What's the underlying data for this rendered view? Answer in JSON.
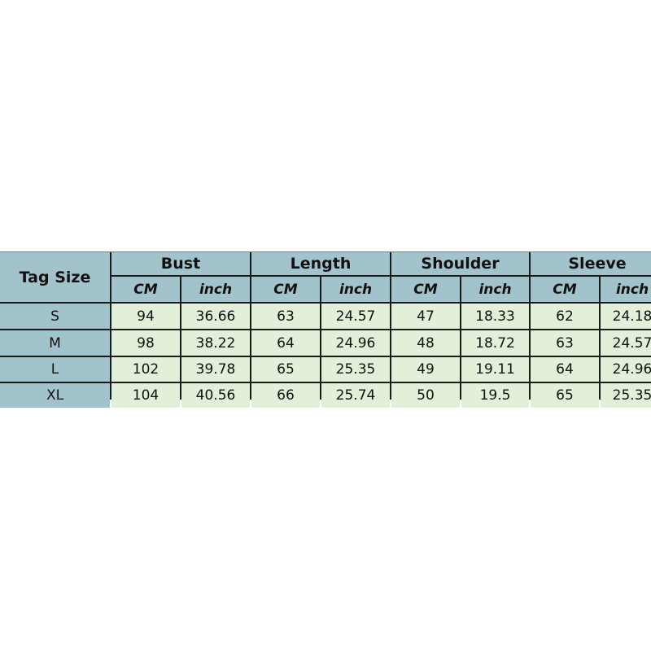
{
  "table": {
    "corner": "Tag Size",
    "groups": [
      "Bust",
      "Length",
      "Shoulder",
      "Sleeve"
    ],
    "units": [
      "CM",
      "inch"
    ],
    "rows": [
      {
        "size": "S",
        "values": [
          "94",
          "36.66",
          "63",
          "24.57",
          "47",
          "18.33",
          "62",
          "24.18"
        ]
      },
      {
        "size": "M",
        "values": [
          "98",
          "38.22",
          "64",
          "24.96",
          "48",
          "18.72",
          "63",
          "24.57"
        ]
      },
      {
        "size": "L",
        "values": [
          "102",
          "39.78",
          "65",
          "25.35",
          "49",
          "19.11",
          "64",
          "24.96"
        ]
      },
      {
        "size": "XL",
        "values": [
          "104",
          "40.56",
          "66",
          "25.74",
          "50",
          "19.5",
          "65",
          "25.35"
        ]
      }
    ]
  },
  "colors": {
    "header": "#a3c3cc",
    "cell": "#e2efd9",
    "border": "#1a1a1a"
  }
}
